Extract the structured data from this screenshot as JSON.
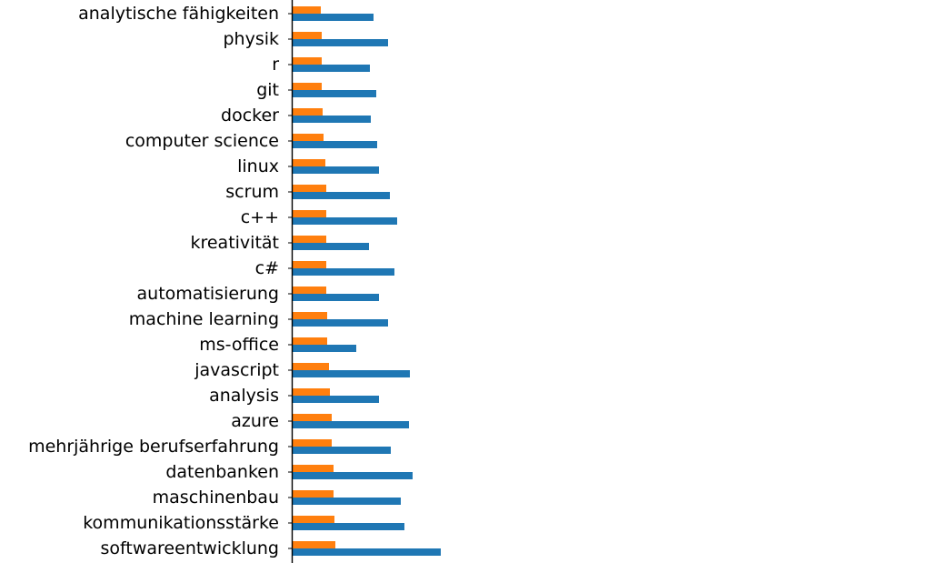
{
  "chart_data": {
    "type": "bar",
    "orientation": "horizontal",
    "categories": [
      "analytische fähigkeiten",
      "physik",
      "r",
      "git",
      "docker",
      "computer science",
      "linux",
      "scrum",
      "c++",
      "kreativität",
      "c#",
      "automatisierung",
      "machine learning",
      "ms-office",
      "javascript",
      "analysis",
      "azure",
      "mehrjährige berufserfahrung",
      "datenbanken",
      "maschinenbau",
      "kommunikationsstärke",
      "softwareentwicklung"
    ],
    "series": [
      {
        "color": "#ff7f0e",
        "values": [
          31,
          32,
          32,
          32,
          33,
          34,
          36,
          37,
          37,
          37,
          37,
          37,
          38,
          38,
          40,
          41,
          43,
          43,
          45,
          45,
          46,
          47
        ]
      },
      {
        "color": "#1f77b4",
        "values": [
          89,
          105,
          85,
          92,
          86,
          93,
          95,
          107,
          115,
          84,
          112,
          95,
          105,
          70,
          129,
          95,
          128,
          108,
          132,
          119,
          123,
          163
        ]
      }
    ],
    "xlim": [
      0,
      700
    ],
    "axis": {
      "show_left_spine": true,
      "show_x_axis": false
    },
    "grid": false,
    "legend": "none"
  }
}
